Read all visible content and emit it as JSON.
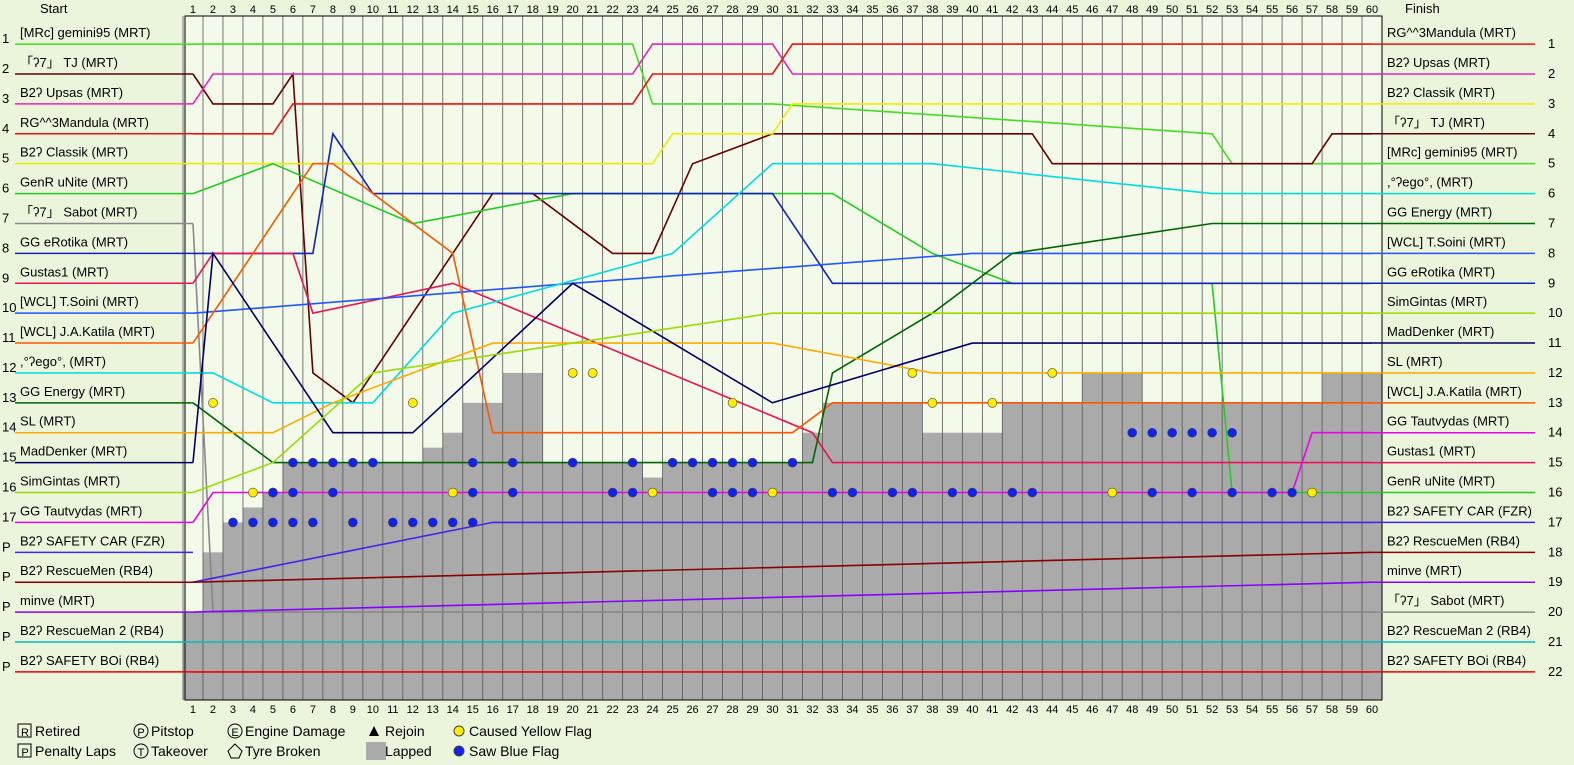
{
  "chart_data": {
    "type": "line",
    "start_header": "Start",
    "finish_header": "Finish",
    "xticks": [
      1,
      2,
      3,
      4,
      5,
      6,
      7,
      8,
      9,
      10,
      11,
      12,
      13,
      14,
      15,
      16,
      17,
      18,
      19,
      20,
      21,
      22,
      23,
      24,
      25,
      26,
      27,
      28,
      29,
      30,
      31,
      32,
      33,
      34,
      35,
      36,
      37,
      38,
      39,
      40,
      41,
      42,
      43,
      44,
      45,
      46,
      47,
      48,
      49,
      50,
      51,
      52,
      53,
      54,
      55,
      56,
      57,
      58,
      59,
      60
    ],
    "xlim": [
      0.6,
      60.5
    ],
    "ylim": [
      0.06,
      22.94
    ],
    "start_positions": [
      1,
      2,
      3,
      4,
      5,
      6,
      7,
      8,
      9,
      10,
      11,
      12,
      13,
      14,
      15,
      16,
      17,
      "P",
      "P",
      "P",
      "P",
      "P"
    ],
    "finish_positions": [
      1,
      2,
      3,
      4,
      5,
      6,
      7,
      8,
      9,
      10,
      11,
      12,
      13,
      14,
      15,
      16,
      17,
      18,
      19,
      20,
      21,
      22
    ],
    "finish_order": [
      "RG^^3Mandula (MRT)",
      "B2ʔ Upsas (MRT)",
      "B2ʔ Classik (MRT)",
      "「ʔ7」 TJ (MRT)",
      "[MRc] gemini95 (MRT)",
      ",°ʔego°, (MRT)",
      "GG Energy (MRT)",
      "[WCL] T.Soini (MRT)",
      "GG eRotika (MRT)",
      "SimGintas (MRT)",
      "MadDenker (MRT)",
      "SL (MRT)",
      "[WCL] J.A.Katila (MRT)",
      "GG Tautvydas (MRT)",
      "Gustas1 (MRT)",
      "GenR uNite (MRT)",
      "B2ʔ SAFETY CAR (FZR)",
      "B2ʔ RescueMen (RB4)",
      "minve (MRT)",
      "「ʔ7」 Sabot (MRT)",
      "B2ʔ RescueMan 2 (RB4)",
      "B2ʔ SAFETY BOi (RB4)"
    ],
    "series": [
      {
        "name": "[MRc] gemini95 (MRT)",
        "color": "#44dd22",
        "x": [
          1,
          23,
          24,
          30,
          52,
          53,
          60
        ],
        "values": [
          1,
          1,
          3,
          3,
          4,
          5,
          5
        ]
      },
      {
        "name": "「ʔ7」 TJ (MRT)",
        "color": "#660000",
        "x": [
          1,
          2,
          5,
          6,
          7,
          9,
          12,
          16,
          18,
          22,
          24,
          26,
          30,
          43,
          44,
          57,
          58,
          60
        ],
        "values": [
          2,
          3,
          3,
          2,
          12,
          13,
          10,
          6,
          6,
          8,
          8,
          5,
          4,
          4,
          5,
          5,
          4,
          4
        ]
      },
      {
        "name": "B2ʔ Upsas (MRT)",
        "color": "#ee22bb",
        "x": [
          1,
          2,
          23,
          24,
          30,
          31,
          60
        ],
        "values": [
          3,
          2,
          2,
          1,
          1,
          2,
          2
        ]
      },
      {
        "name": "RG^^3Mandula (MRT)",
        "color": "#ee1111",
        "x": [
          1,
          5,
          6,
          23,
          24,
          30,
          31,
          60
        ],
        "values": [
          4,
          4,
          3,
          3,
          2,
          2,
          1,
          1
        ]
      },
      {
        "name": "B2ʔ Classik (MRT)",
        "color": "#eeee00",
        "x": [
          1,
          24,
          25,
          30,
          31,
          60
        ],
        "values": [
          5,
          5,
          4,
          4,
          3,
          3
        ]
      },
      {
        "name": "GenR uNite (MRT)",
        "color": "#22cc22",
        "x": [
          1,
          5,
          12,
          20,
          33,
          38,
          42,
          52,
          53,
          60
        ],
        "values": [
          6,
          5,
          7,
          6,
          6,
          8,
          9,
          9,
          16,
          16
        ]
      },
      {
        "name": "「ʔ7」 Sabot (MRT)",
        "color": "#888888",
        "x": [
          1,
          2,
          60
        ],
        "values": [
          7,
          20,
          20
        ]
      },
      {
        "name": "GG eRotika (MRT)",
        "color": "#1122bb",
        "x": [
          1,
          7,
          8,
          10,
          30,
          33,
          60
        ],
        "values": [
          8,
          8,
          4,
          6,
          6,
          9,
          9
        ]
      },
      {
        "name": "Gustas1 (MRT)",
        "color": "#ee1155",
        "x": [
          1,
          2,
          6,
          7,
          14,
          32,
          33,
          60
        ],
        "values": [
          9,
          8,
          8,
          10,
          9,
          14,
          15,
          15
        ]
      },
      {
        "name": "[WCL] T.Soini (MRT)",
        "color": "#2255ff",
        "x": [
          1,
          20,
          40,
          60
        ],
        "values": [
          10,
          9,
          8,
          8
        ]
      },
      {
        "name": "[WCL] J.A.Katila (MRT)",
        "color": "#ff5500",
        "x": [
          1,
          7,
          8,
          14,
          16,
          31,
          33,
          60
        ],
        "values": [
          11,
          5,
          5,
          8,
          14,
          14,
          13,
          13
        ]
      },
      {
        "name": ",°ʔego°, (MRT)",
        "color": "#00dddd",
        "x": [
          1,
          2,
          5,
          10,
          14,
          25,
          30,
          38,
          52,
          60
        ],
        "values": [
          12,
          12,
          13,
          13,
          10,
          8,
          5,
          5,
          6,
          6
        ]
      },
      {
        "name": "GG Energy (MRT)",
        "color": "#006600",
        "x": [
          1,
          5,
          32,
          33,
          38,
          42,
          52,
          60
        ],
        "values": [
          13,
          15,
          15,
          12,
          10,
          8,
          7,
          7
        ]
      },
      {
        "name": "SL (MRT)",
        "color": "#ffaa00",
        "x": [
          1,
          5,
          8,
          16,
          30,
          38,
          60
        ],
        "values": [
          14,
          14,
          13,
          11,
          11,
          12,
          12
        ]
      },
      {
        "name": "MadDenker (MRT)",
        "color": "#000066",
        "x": [
          1,
          2,
          8,
          12,
          20,
          30,
          40,
          60
        ],
        "values": [
          15,
          8,
          14,
          14,
          9,
          13,
          11,
          11
        ]
      },
      {
        "name": "SimGintas (MRT)",
        "color": "#99dd00",
        "x": [
          1,
          5,
          10,
          30,
          60
        ],
        "values": [
          16,
          15,
          12,
          10,
          10
        ]
      },
      {
        "name": "GG Tautvydas (MRT)",
        "color": "#ee00ee",
        "x": [
          1,
          2,
          56,
          57,
          60
        ],
        "values": [
          17,
          16,
          16,
          14,
          14
        ]
      },
      {
        "name": "B2ʔ SAFETY CAR (FZR)",
        "color": "#4422ee",
        "x": [
          1,
          16,
          17,
          60
        ],
        "values": [
          19,
          17,
          17,
          17
        ]
      },
      {
        "name": "B2ʔ RescueMen (RB4)",
        "color": "#880000",
        "x": [
          1,
          60
        ],
        "values": [
          19,
          18
        ]
      },
      {
        "name": "minve (MRT)",
        "color": "#8800ff",
        "x": [
          1,
          60
        ],
        "values": [
          20,
          19
        ]
      },
      {
        "name": "B2ʔ RescueMan 2 (RB4)",
        "color": "#00bbbb",
        "x": [
          1,
          60
        ],
        "values": [
          21,
          21
        ]
      },
      {
        "name": "B2ʔ SAFETY BOi (RB4)",
        "color": "#ee0000",
        "x": [
          1,
          60
        ],
        "values": [
          22,
          22
        ]
      }
    ],
    "lapped": [
      20,
      18,
      17,
      16.5,
      16,
      15,
      15,
      15,
      15,
      15,
      15,
      15,
      14.5,
      14,
      13,
      13,
      12,
      12,
      15,
      15,
      15,
      15,
      15,
      15.5,
      15,
      15,
      15,
      15,
      15,
      15,
      15,
      14,
      13,
      13,
      13,
      13,
      13,
      14,
      14,
      14,
      14,
      13,
      13,
      13,
      13,
      12,
      12,
      12,
      13,
      13,
      13,
      13,
      13,
      13,
      13,
      13,
      13,
      12,
      12,
      12
    ],
    "blue_flags": {
      "laps": [
        3,
        4,
        5,
        6,
        7,
        9,
        11,
        12,
        13,
        14,
        15,
        6,
        7,
        8,
        9,
        10,
        15,
        17,
        20,
        23,
        25,
        26,
        27,
        28,
        29,
        31,
        5,
        6,
        8,
        15,
        17,
        22,
        23,
        27,
        28,
        29,
        33,
        34,
        36,
        37,
        39,
        40,
        42,
        43,
        49,
        51,
        53,
        55,
        56,
        48,
        49,
        50,
        51,
        52,
        53
      ],
      "positions": [
        17,
        17,
        17,
        17,
        17,
        17,
        17,
        17,
        17,
        17,
        17,
        15,
        15,
        15,
        15,
        15,
        15,
        15,
        15,
        15,
        15,
        15,
        15,
        15,
        15,
        15,
        16,
        16,
        16,
        16,
        16,
        16,
        16,
        16,
        16,
        16,
        16,
        16,
        16,
        16,
        16,
        16,
        16,
        16,
        16,
        16,
        16,
        16,
        16,
        14,
        14,
        14,
        14,
        14,
        14
      ]
    },
    "yellow_flags": {
      "laps": [
        4,
        5,
        14,
        24,
        30,
        47,
        57,
        2,
        12,
        28,
        38,
        41,
        20,
        21,
        37,
        44
      ],
      "positions": [
        16,
        16,
        16,
        16,
        16,
        16,
        16,
        13,
        13,
        13,
        13,
        13,
        12,
        12,
        12,
        12
      ]
    },
    "legend": [
      {
        "symbol": "R",
        "label": "Retired"
      },
      {
        "symbol": "P",
        "label": "Penalty Laps"
      },
      {
        "symbol": "P",
        "label": "Pitstop"
      },
      {
        "symbol": "T",
        "label": "Takeover"
      },
      {
        "symbol": "E",
        "label": "Engine Damage"
      },
      {
        "label": "Tyre Broken"
      },
      {
        "label": "Rejoin"
      },
      {
        "label": "Lapped"
      },
      {
        "label": "Caused Yellow Flag"
      },
      {
        "label": "Saw Blue Flag"
      }
    ]
  }
}
